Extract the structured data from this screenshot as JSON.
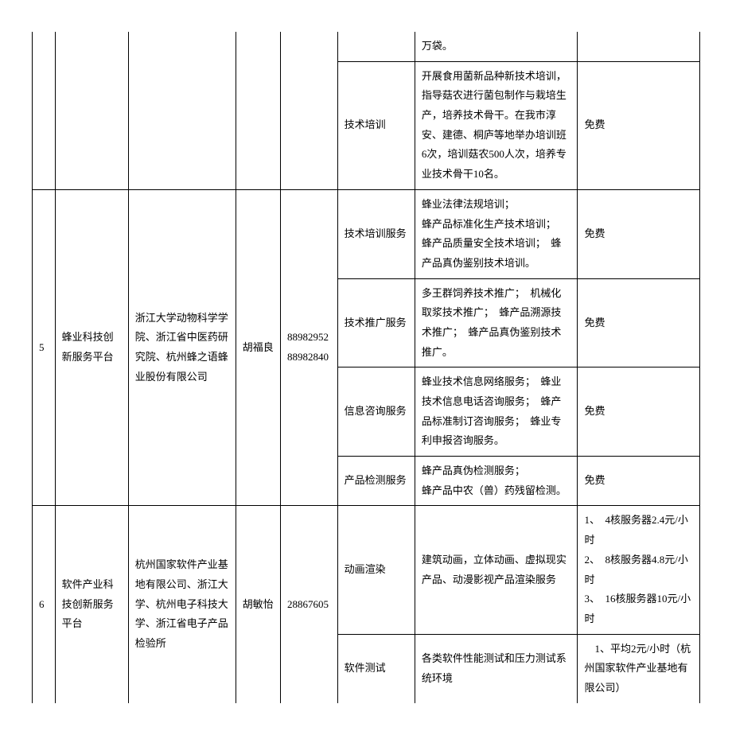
{
  "rows": [
    {
      "idx": "",
      "platform": "",
      "org": "",
      "person": "",
      "phone": "",
      "services": [
        {
          "name": "",
          "desc": "万袋。",
          "fee": "",
          "topOpen": true
        },
        {
          "name": "技术培训",
          "desc": "开展食用菌新品种新技术培训，指导菇农进行菌包制作与栽培生产，培养技术骨干。在我市淳安、建德、桐庐等地举办培训班6次，培训菇农500人次，培养专业技术骨干10名。",
          "fee": "免费"
        }
      ],
      "topOpen": true
    },
    {
      "idx": "5",
      "platform": "蜂业科技创新服务平台",
      "org": "浙江大学动物科学学院、浙江省中医药研究院、杭州蜂之语蜂业股份有限公司",
      "person": "胡福良",
      "phone": "88982952 88982840",
      "services": [
        {
          "name": "技术培训服务",
          "desc": "蜂业法律法规培训；\n蜂产品标准化生产技术培训；　蜂产品质量安全技术培训；　蜂产品真伪鉴别技术培训。",
          "fee": "免费"
        },
        {
          "name": "技术推广服务",
          "desc": "多王群饲养技术推广；　机械化取浆技术推广；　蜂产品溯源技术推广；　蜂产品真伪鉴别技术推广。",
          "fee": "免费"
        },
        {
          "name": "信息咨询服务",
          "desc": "蜂业技术信息网络服务；　蜂业技术信息电话咨询服务；　蜂产品标准制订咨询服务；　蜂业专利申报咨询服务。",
          "fee": "免费"
        },
        {
          "name": "产品检测服务",
          "desc": "蜂产品真伪检测服务；\n蜂产品中农（兽）药残留检测。",
          "fee": "免费"
        }
      ]
    },
    {
      "idx": "6",
      "platform": "软件产业科技创新服务平台",
      "org": "杭州国家软件产业基地有限公司、浙江大学、杭州电子科技大学、浙江省电子产品检验所",
      "person": "胡敏怡",
      "phone": "28867605",
      "services": [
        {
          "name": "动画渲染",
          "desc": "建筑动画，立体动画、虚拟现实产品、动漫影视产品渲染服务",
          "fee": "1、　4核服务器2.4元/小时\n2、　8核服务器4.8元/小时\n3、　16核服务器10元/小时"
        },
        {
          "name": "软件测试",
          "desc": "各类软件性能测试和压力测试系统环境",
          "fee": "　1、平均2元/小时（杭州国家软件产业基地有限公司）",
          "bottomOpen": true
        }
      ],
      "bottomOpen": true
    }
  ]
}
